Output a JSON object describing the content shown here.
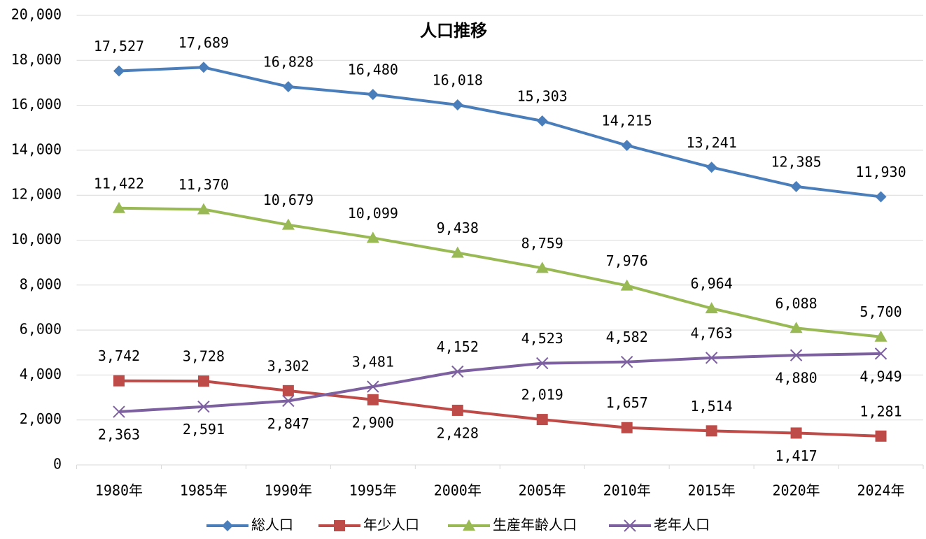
{
  "chart_data": {
    "type": "line",
    "title": "人口推移",
    "categories": [
      "1980年",
      "1985年",
      "1990年",
      "1995年",
      "2000年",
      "2005年",
      "2010年",
      "2015年",
      "2020年",
      "2024年"
    ],
    "series": [
      {
        "name": "総人口",
        "color": "#4a7ebb",
        "marker": "diamond",
        "values": [
          17527,
          17689,
          16828,
          16480,
          16018,
          15303,
          14215,
          13241,
          12385,
          11930
        ],
        "value_labels": [
          "17,527",
          "17,689",
          "16,828",
          "16,480",
          "16,018",
          "15,303",
          "14,215",
          "13,241",
          "12,385",
          "11,930"
        ]
      },
      {
        "name": "年少人口",
        "color": "#be4b48",
        "marker": "square",
        "values": [
          3742,
          3728,
          3302,
          2900,
          2428,
          2019,
          1657,
          1514,
          1417,
          1281
        ],
        "value_labels": [
          "3,742",
          "3,728",
          "3,302",
          "2,900",
          "2,428",
          "2,019",
          "1,657",
          "1,514",
          "1,417",
          "1,281"
        ]
      },
      {
        "name": "生産年齢人口",
        "color": "#98b954",
        "marker": "triangle",
        "values": [
          11422,
          11370,
          10679,
          10099,
          9438,
          8759,
          7976,
          6964,
          6088,
          5700
        ],
        "value_labels": [
          "11,422",
          "11,370",
          "10,679",
          "10,099",
          "9,438",
          "8,759",
          "7,976",
          "6,964",
          "6,088",
          "5,700"
        ]
      },
      {
        "name": "老年人口",
        "color": "#7d60a0",
        "marker": "x",
        "values": [
          2363,
          2591,
          2847,
          3481,
          4152,
          4523,
          4582,
          4763,
          4880,
          4949
        ],
        "value_labels": [
          "2,363",
          "2,591",
          "2,847",
          "3,481",
          "4,152",
          "4,523",
          "4,582",
          "4,763",
          "4,880",
          "4,949"
        ]
      }
    ],
    "ylim": [
      0,
      20000
    ],
    "yticks": [
      0,
      {
        "value": 2000,
        "label": "2,000"
      },
      {
        "value": 4000,
        "label": "4,000"
      },
      {
        "value": 6000,
        "label": "6,000"
      },
      {
        "value": 8000,
        "label": "8,000"
      },
      {
        "value": 10000,
        "label": "10,000"
      },
      {
        "value": 12000,
        "label": "12,000"
      },
      {
        "value": 14000,
        "label": "14,000"
      },
      {
        "value": 16000,
        "label": "16,000"
      },
      {
        "value": 18000,
        "label": "18,000"
      },
      {
        "value": 20000,
        "label": "20,000"
      }
    ],
    "grid": true,
    "legend": "bottom"
  }
}
